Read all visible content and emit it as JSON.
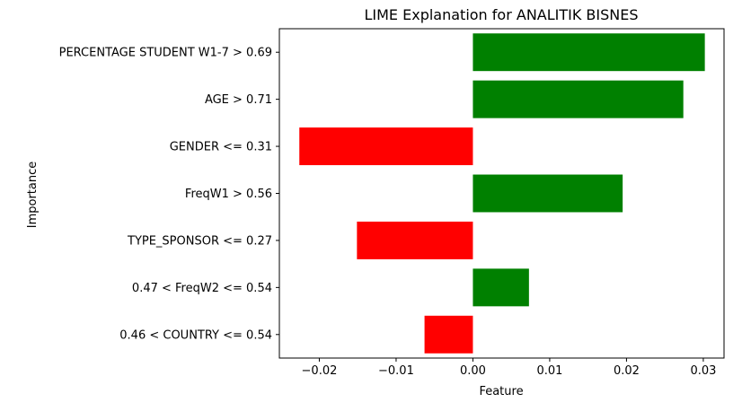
{
  "chart_data": {
    "type": "bar",
    "orientation": "horizontal",
    "title": "LIME Explanation for ANALITIK BISNES",
    "xlabel": "Feature",
    "ylabel": "Importance",
    "categories": [
      "PERCENTAGE STUDENT W1-7 > 0.69",
      "AGE > 0.71",
      "GENDER <= 0.31",
      "FreqW1 > 0.56",
      "TYPE_SPONSOR <= 0.27",
      "0.47 < FreqW2 <= 0.54",
      "0.46 < COUNTRY <= 0.54"
    ],
    "values": [
      0.0302,
      0.0274,
      -0.0226,
      0.0195,
      -0.0151,
      0.0073,
      -0.0063
    ],
    "xlim": [
      -0.0252,
      0.0327
    ],
    "xticks": [
      -0.02,
      -0.01,
      0.0,
      0.01,
      0.02,
      0.03
    ],
    "xtick_labels": [
      "−0.02",
      "−0.01",
      "0.00",
      "0.01",
      "0.02",
      "0.03"
    ],
    "positive_color": "#008000",
    "negative_color": "#ff0000",
    "grid": false,
    "legend": "none"
  }
}
